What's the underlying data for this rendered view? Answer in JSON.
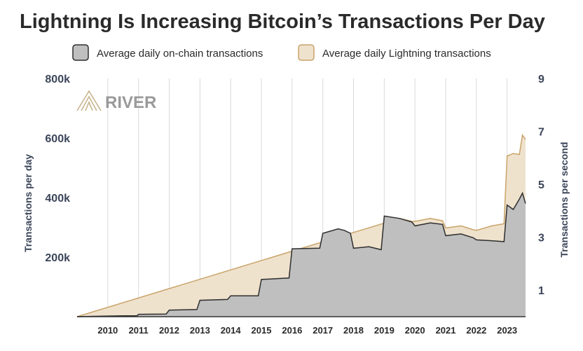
{
  "title": "Lightning Is Increasing Bitcoin’s Transactions Per Day",
  "brand": {
    "name": "RIVER",
    "color": "#c8b48e",
    "text_color": "#9a9a9a"
  },
  "colors": {
    "text": "#2a2a2a",
    "axis_label": "#3b4559",
    "grid": "#d9d9d9",
    "onchain_fill": "#bfbfbf",
    "onchain_line": "#2e2e2e",
    "lightning_fill": "#efe2cd",
    "lightning_line": "#c9a46a"
  },
  "chart_data": {
    "type": "area",
    "title": "Lightning Is Increasing Bitcoin’s Transactions Per Day",
    "xlabel": "",
    "ylabel": "Transactions per day",
    "y2label": "Transactions per second",
    "xlim": [
      2009.0,
      2023.6
    ],
    "ylim": [
      0,
      800000
    ],
    "y2lim": [
      0,
      9
    ],
    "grid": true,
    "legend_position": "top",
    "x_ticks": [
      "2010",
      "2011",
      "2012",
      "2013",
      "2014",
      "2015",
      "2016",
      "2017",
      "2018",
      "2019",
      "2020",
      "2021",
      "2022",
      "2023"
    ],
    "y_ticks": [
      {
        "value": 200000,
        "label": "200k"
      },
      {
        "value": 400000,
        "label": "400k"
      },
      {
        "value": 600000,
        "label": "600k"
      },
      {
        "value": 800000,
        "label": "800k"
      }
    ],
    "y2_ticks": [
      {
        "value": 1,
        "label": "1"
      },
      {
        "value": 3,
        "label": "3"
      },
      {
        "value": 5,
        "label": "5"
      },
      {
        "value": 7,
        "label": "7"
      },
      {
        "value": 9,
        "label": "9"
      }
    ],
    "series": [
      {
        "name": "Average daily on-chain transactions",
        "x": [
          2009.0,
          2010.0,
          2010.5,
          2010.95,
          2011.0,
          2011.9,
          2012.0,
          2012.9,
          2013.0,
          2013.9,
          2014.0,
          2014.9,
          2015.0,
          2015.9,
          2016.0,
          2016.9,
          2017.0,
          2017.5,
          2017.7,
          2017.9,
          2018.0,
          2018.5,
          2018.9,
          2019.0,
          2019.5,
          2019.9,
          2020.0,
          2020.5,
          2020.9,
          2021.0,
          2021.5,
          2021.9,
          2022.0,
          2022.5,
          2022.9,
          2023.0,
          2023.2,
          2023.4,
          2023.5,
          2023.6
        ],
        "y": [
          0,
          2000,
          3000,
          3000,
          8000,
          9000,
          22000,
          24000,
          55000,
          58000,
          70000,
          70000,
          125000,
          130000,
          228000,
          230000,
          280000,
          295000,
          290000,
          280000,
          230000,
          235000,
          225000,
          338000,
          330000,
          318000,
          305000,
          315000,
          310000,
          272000,
          278000,
          265000,
          258000,
          255000,
          252000,
          375000,
          360000,
          395000,
          415000,
          380000
        ]
      },
      {
        "name": "Average daily Lightning transactions",
        "x": [
          2009.0,
          2019.5,
          2019.9,
          2020.0,
          2020.5,
          2020.9,
          2021.0,
          2021.5,
          2021.9,
          2022.0,
          2022.5,
          2022.9,
          2023.0,
          2023.2,
          2023.4,
          2023.5,
          2023.6
        ],
        "y": [
          0,
          330000,
          320000,
          320000,
          330000,
          322000,
          298000,
          305000,
          292000,
          290000,
          305000,
          312000,
          540000,
          548000,
          545000,
          610000,
          595000
        ]
      }
    ]
  }
}
